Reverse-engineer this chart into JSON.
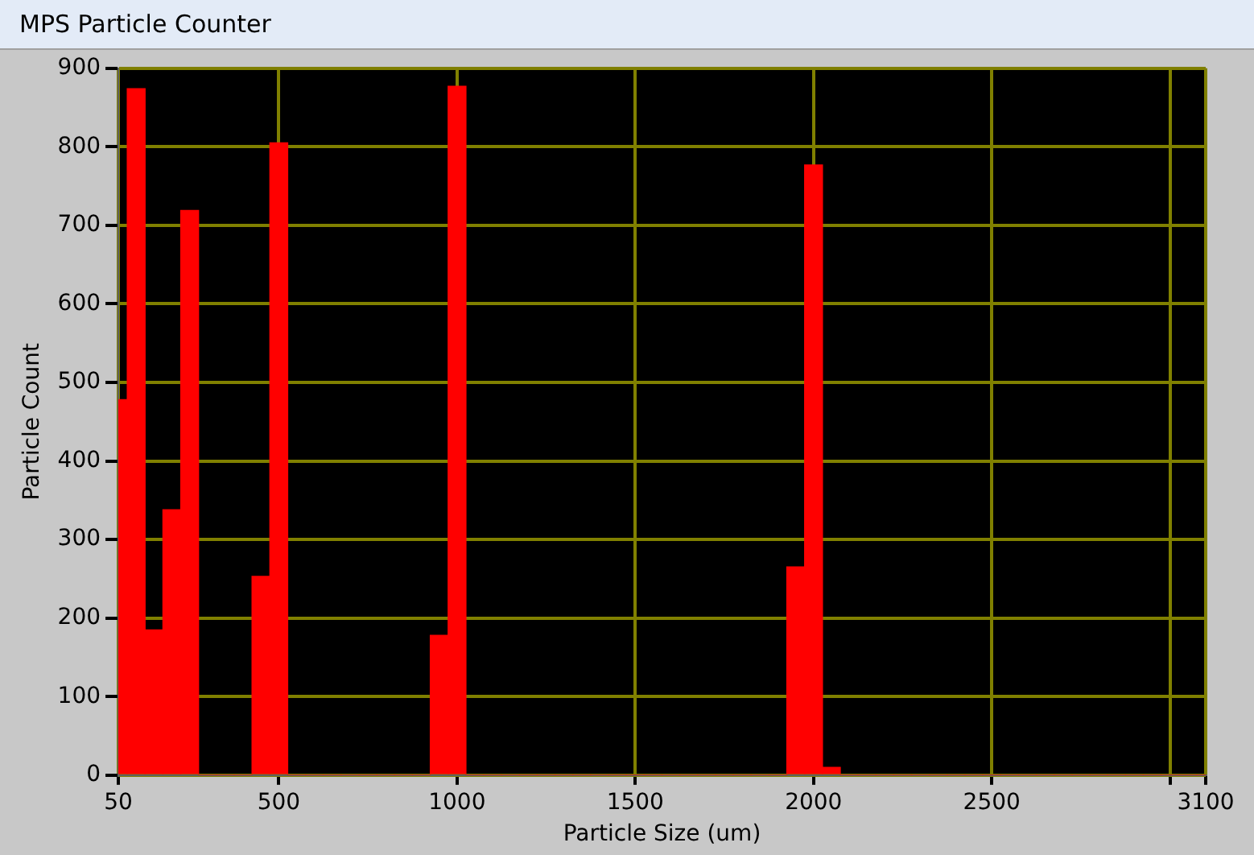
{
  "chart_data": {
    "type": "histogram",
    "title": "MPS Particle Counter",
    "xlabel": "Particle Size (um)",
    "ylabel": "Particle Count",
    "bins": [
      50,
      75,
      125,
      175,
      225,
      275,
      325,
      375,
      425,
      475,
      525,
      575,
      625,
      675,
      725,
      775,
      825,
      875,
      925,
      975,
      1025,
      1075,
      1125,
      1175,
      1225,
      1275,
      1325,
      1375,
      1425,
      1475,
      1525,
      1575,
      1625,
      1675,
      1725,
      1775,
      1825,
      1875,
      1925,
      1975,
      2025,
      2075,
      2125,
      2175,
      2225,
      2275,
      2325,
      2375,
      2425,
      2475,
      2525,
      2575,
      2625,
      2675,
      2725,
      2775,
      2825,
      2875,
      2925,
      2975,
      3025,
      3075,
      3100
    ],
    "values": [
      478,
      874,
      185,
      338,
      719,
      0,
      0,
      0,
      253,
      805,
      0,
      0,
      0,
      0,
      0,
      0,
      0,
      0,
      178,
      877,
      0,
      0,
      0,
      0,
      0,
      0,
      0,
      0,
      0,
      0,
      0,
      0,
      0,
      0,
      0,
      0,
      0,
      0,
      265,
      777,
      10,
      0,
      0,
      0,
      0,
      0,
      0,
      0,
      0,
      0,
      0,
      0,
      0,
      0,
      0,
      0,
      0,
      0,
      0,
      0,
      0,
      0
    ],
    "color": "#ff0000",
    "xlim": [
      50,
      3100
    ],
    "xticks": [
      50,
      500,
      1000,
      1500,
      2000,
      2500,
      {
        "value": 3000,
        "label": null
      },
      3100
    ],
    "ylim": [
      0,
      900
    ],
    "yticks": [
      0,
      100,
      200,
      300,
      400,
      500,
      600,
      700,
      800,
      900
    ],
    "grid": true,
    "legend": false
  }
}
